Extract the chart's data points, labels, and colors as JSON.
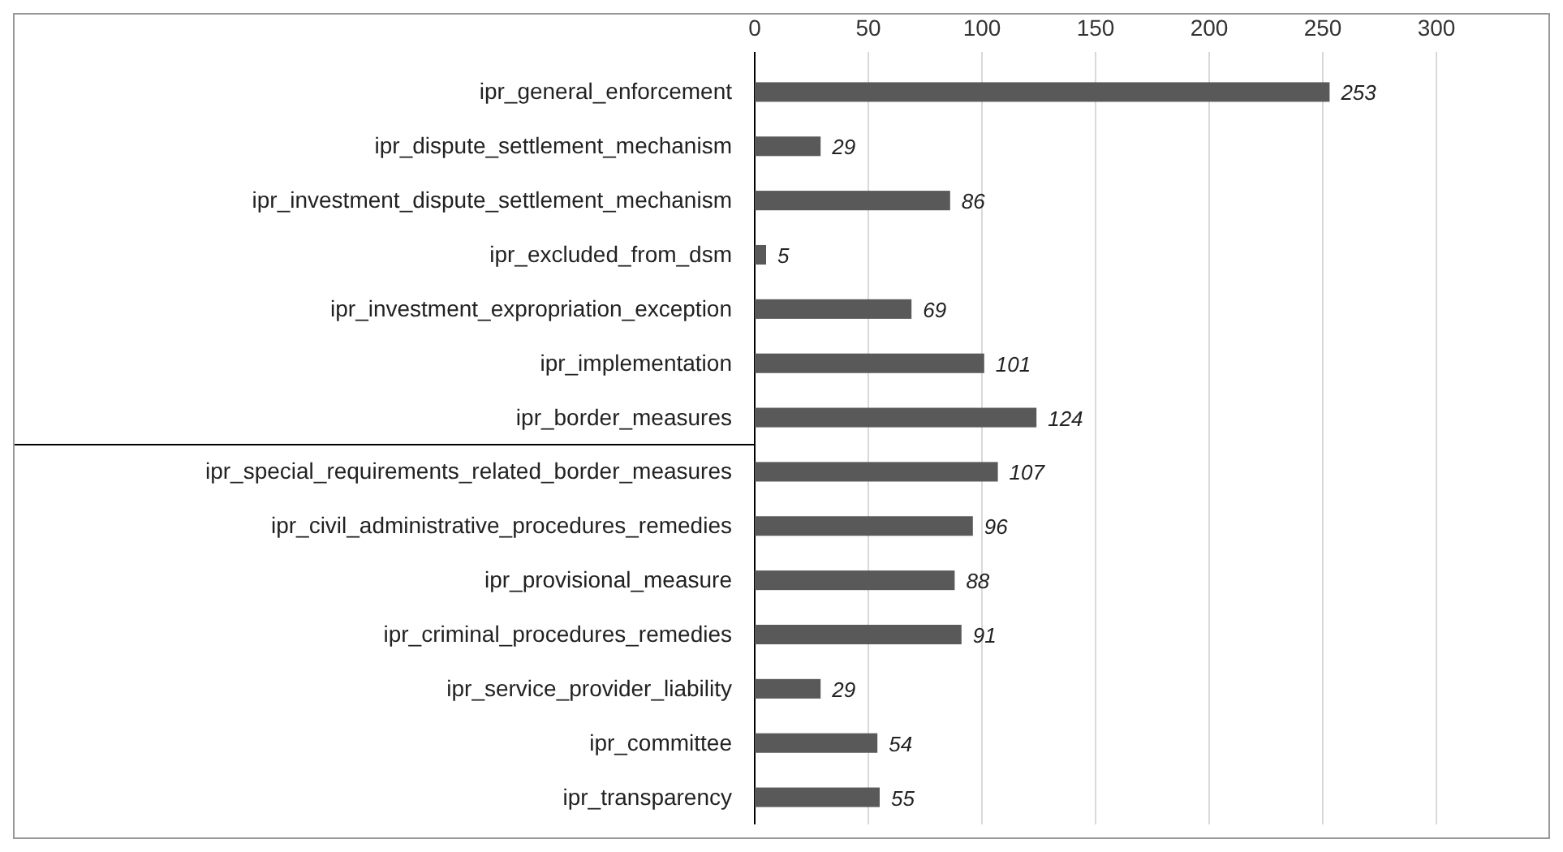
{
  "chart_data": {
    "type": "bar",
    "orientation": "horizontal",
    "categories": [
      "ipr_general_enforcement",
      "ipr_dispute_settlement_mechanism",
      "ipr_investment_dispute_settlement_mechanism",
      "ipr_excluded_from_dsm",
      "ipr_investment_expropriation_exception",
      "ipr_implementation",
      "ipr_border_measures",
      "ipr_special_requirements_related_border_measures",
      "ipr_civil_administrative_procedures_remedies",
      "ipr_provisional_measure",
      "ipr_criminal_procedures_remedies",
      "ipr_service_provider_liability",
      "ipr_committee",
      "ipr_transparency"
    ],
    "values": [
      253,
      29,
      86,
      5,
      69,
      101,
      124,
      107,
      96,
      88,
      91,
      29,
      54,
      55
    ],
    "color": "#595959",
    "xlim": [
      0,
      300
    ],
    "xticks": [
      0,
      50,
      100,
      150,
      200,
      250,
      300
    ],
    "grid": "x",
    "data_labels": true
  }
}
